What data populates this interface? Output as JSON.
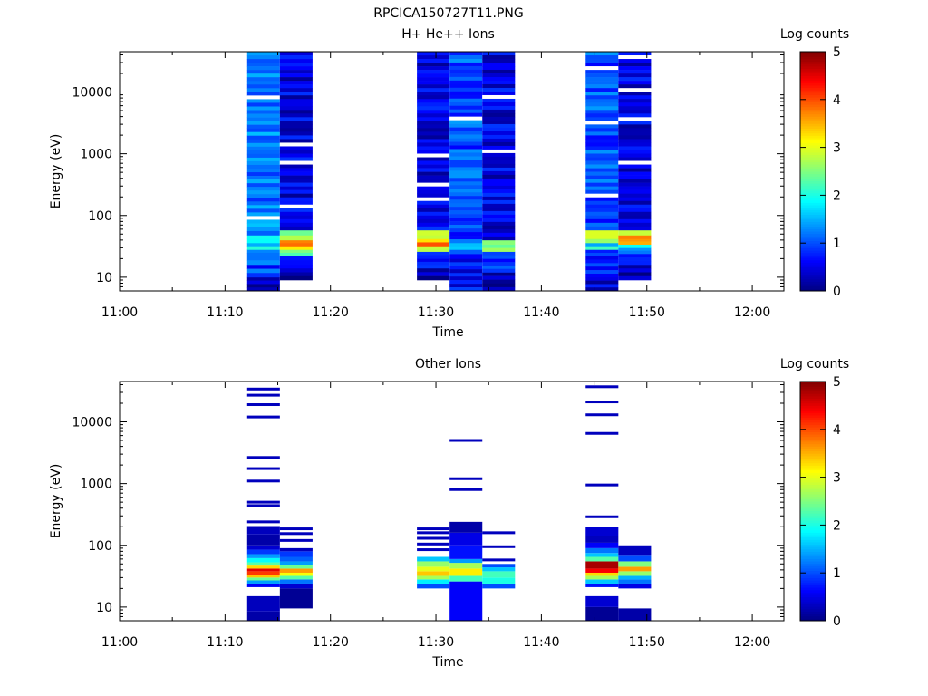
{
  "figure": {
    "title": "RPCICA150727T11.PNG"
  },
  "chart_data": [
    {
      "type": "heatmap",
      "title": "H+ He++ Ions",
      "xlabel": "Time",
      "ylabel": "Energy (eV)",
      "x_ticks": [
        "11:00",
        "11:10",
        "11:20",
        "11:30",
        "11:40",
        "11:50",
        "12:00"
      ],
      "y_ticks": [
        "10",
        "100",
        "1000",
        "10000"
      ],
      "y_scale": "log",
      "ylim": [
        6,
        45000
      ],
      "xlim_minutes": [
        0,
        63
      ],
      "colorbar": {
        "label": "Log counts",
        "ticks": [
          "0",
          "1",
          "2",
          "3",
          "4",
          "5"
        ],
        "range": [
          0,
          5
        ],
        "colormap": "jet"
      },
      "blocks": [
        {
          "t_start": 12.1,
          "t_end": 15.2,
          "fill": "random",
          "bands": [
            [
              6,
              10,
              0.4
            ],
            [
              10,
              16,
              0.9
            ],
            [
              16,
              22,
              1.1
            ],
            [
              22,
              28,
              1.3
            ],
            [
              28,
              36,
              1.8
            ],
            [
              36,
              48,
              2.2
            ],
            [
              48,
              65,
              1.4
            ],
            [
              65,
              45000,
              1.2
            ]
          ]
        },
        {
          "t_start": 15.2,
          "t_end": 18.3,
          "fill": "random",
          "bands": [
            [
              9,
              16,
              0.3
            ],
            [
              16,
              22,
              1.0
            ],
            [
              22,
              28,
              2.5
            ],
            [
              28,
              32,
              3.2
            ],
            [
              32,
              40,
              3.7
            ],
            [
              40,
              48,
              2.8
            ],
            [
              48,
              58,
              2.2
            ],
            [
              58,
              45000,
              0.5
            ]
          ]
        },
        {
          "t_start": 28.2,
          "t_end": 31.3,
          "fill": "random",
          "bands": [
            [
              9,
              14,
              0.2
            ],
            [
              14,
              20,
              0.6
            ],
            [
              20,
              26,
              0.9
            ],
            [
              26,
              32,
              3.0
            ],
            [
              32,
              42,
              3.6
            ],
            [
              42,
              48,
              3.2
            ],
            [
              48,
              58,
              2.6
            ],
            [
              58,
              45000,
              0.5
            ]
          ]
        },
        {
          "t_start": 31.3,
          "t_end": 34.4,
          "fill": "random",
          "bands": [
            [
              6,
              20,
              0.6
            ],
            [
              20,
              28,
              0.8
            ],
            [
              28,
              36,
              1.5
            ],
            [
              36,
              45000,
              1.0
            ]
          ]
        },
        {
          "t_start": 34.4,
          "t_end": 37.5,
          "fill": "random",
          "bands": [
            [
              6,
              12,
              0.2
            ],
            [
              12,
              20,
              0.8
            ],
            [
              20,
              26,
              1.0
            ],
            [
              26,
              34,
              2.6
            ],
            [
              34,
              40,
              2.2
            ],
            [
              40,
              45000,
              0.5
            ]
          ]
        },
        {
          "t_start": 44.2,
          "t_end": 47.3,
          "fill": "random",
          "bands": [
            [
              6,
              10,
              0.5
            ],
            [
              10,
              22,
              0.9
            ],
            [
              22,
              28,
              1.1
            ],
            [
              28,
              36,
              1.8
            ],
            [
              36,
              48,
              2.9
            ],
            [
              48,
              58,
              3.2
            ],
            [
              58,
              45000,
              1.0
            ]
          ]
        },
        {
          "t_start": 47.3,
          "t_end": 50.4,
          "fill": "random",
          "bands": [
            [
              9,
              16,
              0.3
            ],
            [
              16,
              24,
              0.5
            ],
            [
              24,
              30,
              1.0
            ],
            [
              30,
              34,
              1.6
            ],
            [
              34,
              42,
              3.5
            ],
            [
              42,
              48,
              3.9
            ],
            [
              48,
              58,
              2.6
            ],
            [
              58,
              45000,
              0.5
            ]
          ]
        }
      ]
    },
    {
      "type": "heatmap",
      "title": "Other Ions",
      "xlabel": "Time",
      "ylabel": "Energy (eV)",
      "x_ticks": [
        "11:00",
        "11:10",
        "11:20",
        "11:30",
        "11:40",
        "11:50",
        "12:00"
      ],
      "y_ticks": [
        "10",
        "100",
        "1000",
        "10000"
      ],
      "y_scale": "log",
      "ylim": [
        6,
        45000
      ],
      "xlim_minutes": [
        0,
        63
      ],
      "colorbar": {
        "label": "Log counts",
        "ticks": [
          "0",
          "1",
          "2",
          "3",
          "4",
          "5"
        ],
        "range": [
          0,
          5
        ],
        "colormap": "jet"
      },
      "blocks": [
        {
          "t_start": 12.1,
          "t_end": 15.2,
          "fill": "solid",
          "bands": [
            [
              6,
              8.5,
              0.2
            ],
            [
              8.5,
              15,
              0.3
            ],
            [
              21,
              24,
              0.6
            ],
            [
              24,
              27,
              1.4
            ],
            [
              27,
              30,
              2.4
            ],
            [
              30,
              33,
              3.4
            ],
            [
              33,
              38,
              4.1
            ],
            [
              38,
              42,
              4.5
            ],
            [
              42,
              47,
              3.3
            ],
            [
              47,
              53,
              2.3
            ],
            [
              53,
              62,
              1.9
            ],
            [
              62,
              72,
              1.4
            ],
            [
              72,
              85,
              0.9
            ],
            [
              85,
              100,
              0.4
            ],
            [
              100,
              150,
              0.2
            ],
            [
              150,
              205,
              0.3
            ]
          ],
          "lines": [
            [
              240,
              0.3
            ],
            [
              440,
              0.3
            ],
            [
              500,
              0.3
            ],
            [
              1100,
              0.3
            ],
            [
              1750,
              0.3
            ],
            [
              2650,
              0.3
            ],
            [
              12000,
              0.3
            ],
            [
              19000,
              0.3
            ],
            [
              27000,
              0.3
            ],
            [
              34000,
              0.3
            ]
          ]
        },
        {
          "t_start": 15.2,
          "t_end": 18.3,
          "fill": "solid",
          "bands": [
            [
              9.5,
              20,
              0.1
            ],
            [
              20,
              24,
              0.4
            ],
            [
              24,
              28,
              1.2
            ],
            [
              28,
              32,
              2.3
            ],
            [
              32,
              36,
              3.1
            ],
            [
              36,
              42,
              3.6
            ],
            [
              42,
              48,
              2.4
            ],
            [
              48,
              55,
              1.4
            ],
            [
              55,
              65,
              1.1
            ],
            [
              65,
              80,
              0.9
            ],
            [
              80,
              90,
              0.3
            ]
          ],
          "lines": [
            [
              120,
              0.3
            ],
            [
              155,
              0.3
            ],
            [
              185,
              0.3
            ]
          ]
        },
        {
          "t_start": 28.2,
          "t_end": 31.3,
          "fill": "solid",
          "bands": [
            [
              20,
              24,
              1.0
            ],
            [
              24,
              28,
              1.8
            ],
            [
              28,
              32,
              2.7
            ],
            [
              32,
              38,
              3.4
            ],
            [
              38,
              45,
              3.0
            ],
            [
              45,
              55,
              2.6
            ],
            [
              55,
              65,
              1.6
            ]
          ],
          "lines": [
            [
              85,
              0.3
            ],
            [
              105,
              0.3
            ],
            [
              130,
              0.3
            ],
            [
              160,
              0.3
            ],
            [
              185,
              0.3
            ]
          ]
        },
        {
          "t_start": 31.3,
          "t_end": 34.4,
          "fill": "solid",
          "bands": [
            [
              6,
              26,
              0.6
            ],
            [
              26,
              32,
              2.2
            ],
            [
              32,
              42,
              3.2
            ],
            [
              42,
              52,
              2.7
            ],
            [
              52,
              60,
              1.4
            ],
            [
              60,
              100,
              0.7
            ],
            [
              100,
              160,
              0.5
            ],
            [
              160,
              240,
              0.2
            ]
          ],
          "lines": [
            [
              800,
              0.3
            ],
            [
              1200,
              0.3
            ],
            [
              5000,
              0.3
            ]
          ]
        },
        {
          "t_start": 34.4,
          "t_end": 37.5,
          "fill": "solid",
          "bands": [
            [
              20,
              24,
              1.0
            ],
            [
              24,
              30,
              2.0
            ],
            [
              30,
              38,
              2.2
            ],
            [
              38,
              44,
              1.6
            ],
            [
              44,
              50,
              1.0
            ]
          ],
          "lines": [
            [
              58,
              0.3
            ],
            [
              95,
              0.3
            ],
            [
              160,
              0.3
            ]
          ]
        },
        {
          "t_start": 44.2,
          "t_end": 47.3,
          "fill": "solid",
          "bands": [
            [
              6,
              10,
              0.1
            ],
            [
              10,
              15,
              0.4
            ],
            [
              21,
              24,
              0.7
            ],
            [
              24,
              28,
              1.6
            ],
            [
              28,
              32,
              2.7
            ],
            [
              32,
              36,
              3.3
            ],
            [
              36,
              42,
              4.4
            ],
            [
              42,
              55,
              4.8
            ],
            [
              55,
              65,
              2.3
            ],
            [
              65,
              75,
              1.6
            ],
            [
              75,
              90,
              1.2
            ],
            [
              90,
              110,
              0.6
            ],
            [
              110,
              140,
              0.3
            ],
            [
              140,
              200,
              0.4
            ]
          ],
          "lines": [
            [
              290,
              0.3
            ],
            [
              950,
              0.3
            ],
            [
              6500,
              0.3
            ],
            [
              13000,
              0.3
            ],
            [
              21000,
              0.3
            ],
            [
              37000,
              0.3
            ]
          ]
        },
        {
          "t_start": 47.3,
          "t_end": 50.4,
          "fill": "solid",
          "bands": [
            [
              6,
              9.5,
              0.2
            ],
            [
              20,
              24,
              0.5
            ],
            [
              24,
              28,
              1.2
            ],
            [
              28,
              32,
              1.5
            ],
            [
              32,
              38,
              2.6
            ],
            [
              38,
              45,
              3.6
            ],
            [
              45,
              55,
              2.5
            ],
            [
              55,
              70,
              1.0
            ],
            [
              70,
              100,
              0.3
            ]
          ],
          "lines": []
        }
      ]
    }
  ]
}
